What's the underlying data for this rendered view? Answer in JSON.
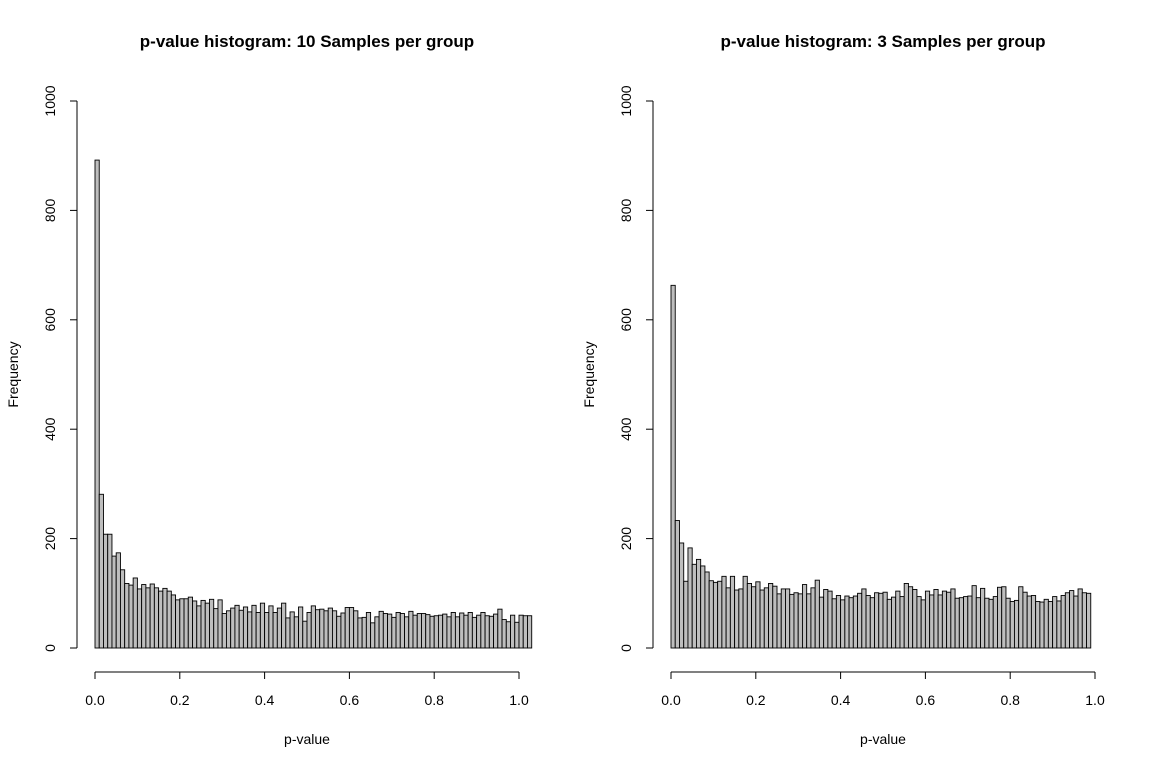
{
  "chart_data": [
    {
      "type": "bar",
      "title": "p-value histogram: 10 Samples per group",
      "xlabel": "p-value",
      "ylabel": "Frequency",
      "xlim": [
        0,
        1
      ],
      "ylim": [
        0,
        1000
      ],
      "x_ticks": [
        "0.0",
        "0.2",
        "0.4",
        "0.6",
        "0.8",
        "1.0"
      ],
      "y_ticks": [
        "0",
        "200",
        "400",
        "600",
        "800",
        "1000"
      ],
      "bin_width": 0.01,
      "bar_color": "#bebebe",
      "grid": false,
      "values": [
        892,
        281,
        208,
        208,
        168,
        174,
        143,
        118,
        115,
        128,
        108,
        116,
        110,
        117,
        110,
        104,
        109,
        104,
        97,
        88,
        90,
        90,
        93,
        86,
        77,
        87,
        82,
        89,
        72,
        88,
        63,
        68,
        73,
        78,
        69,
        75,
        66,
        78,
        65,
        82,
        65,
        77,
        65,
        73,
        82,
        55,
        66,
        57,
        75,
        49,
        65,
        77,
        70,
        71,
        68,
        73,
        68,
        58,
        64,
        74,
        74,
        68,
        55,
        56,
        65,
        46,
        57,
        67,
        63,
        62,
        56,
        65,
        63,
        57,
        67,
        60,
        63,
        63,
        61,
        58,
        59,
        60,
        62,
        57,
        65,
        57,
        64,
        60,
        65,
        56,
        60,
        65,
        59,
        58,
        62,
        71,
        52,
        48,
        60,
        47,
        60,
        59,
        59
      ]
    },
    {
      "type": "bar",
      "title": "p-value histogram: 3 Samples per group",
      "xlabel": "p-value",
      "ylabel": "Frequency",
      "xlim": [
        0,
        1
      ],
      "ylim": [
        0,
        1000
      ],
      "x_ticks": [
        "0.0",
        "0.2",
        "0.4",
        "0.6",
        "0.8",
        "1.0"
      ],
      "y_ticks": [
        "0",
        "200",
        "400",
        "600",
        "800",
        "1000"
      ],
      "bin_width": 0.01,
      "bar_color": "#bebebe",
      "grid": false,
      "values": [
        663,
        233,
        192,
        122,
        183,
        153,
        162,
        150,
        139,
        123,
        120,
        122,
        131,
        110,
        131,
        106,
        108,
        131,
        118,
        112,
        121,
        106,
        110,
        118,
        113,
        99,
        108,
        108,
        98,
        101,
        99,
        116,
        99,
        110,
        124,
        93,
        107,
        104,
        90,
        96,
        88,
        95,
        92,
        95,
        100,
        108,
        96,
        92,
        101,
        100,
        102,
        89,
        93,
        104,
        94,
        118,
        112,
        107,
        94,
        88,
        104,
        97,
        107,
        97,
        104,
        102,
        108,
        91,
        92,
        94,
        95,
        114,
        92,
        109,
        91,
        89,
        94,
        111,
        112,
        91,
        85,
        87,
        112,
        102,
        95,
        96,
        85,
        84,
        89,
        85,
        94,
        86,
        96,
        101,
        105,
        95,
        108,
        101,
        100
      ]
    }
  ]
}
